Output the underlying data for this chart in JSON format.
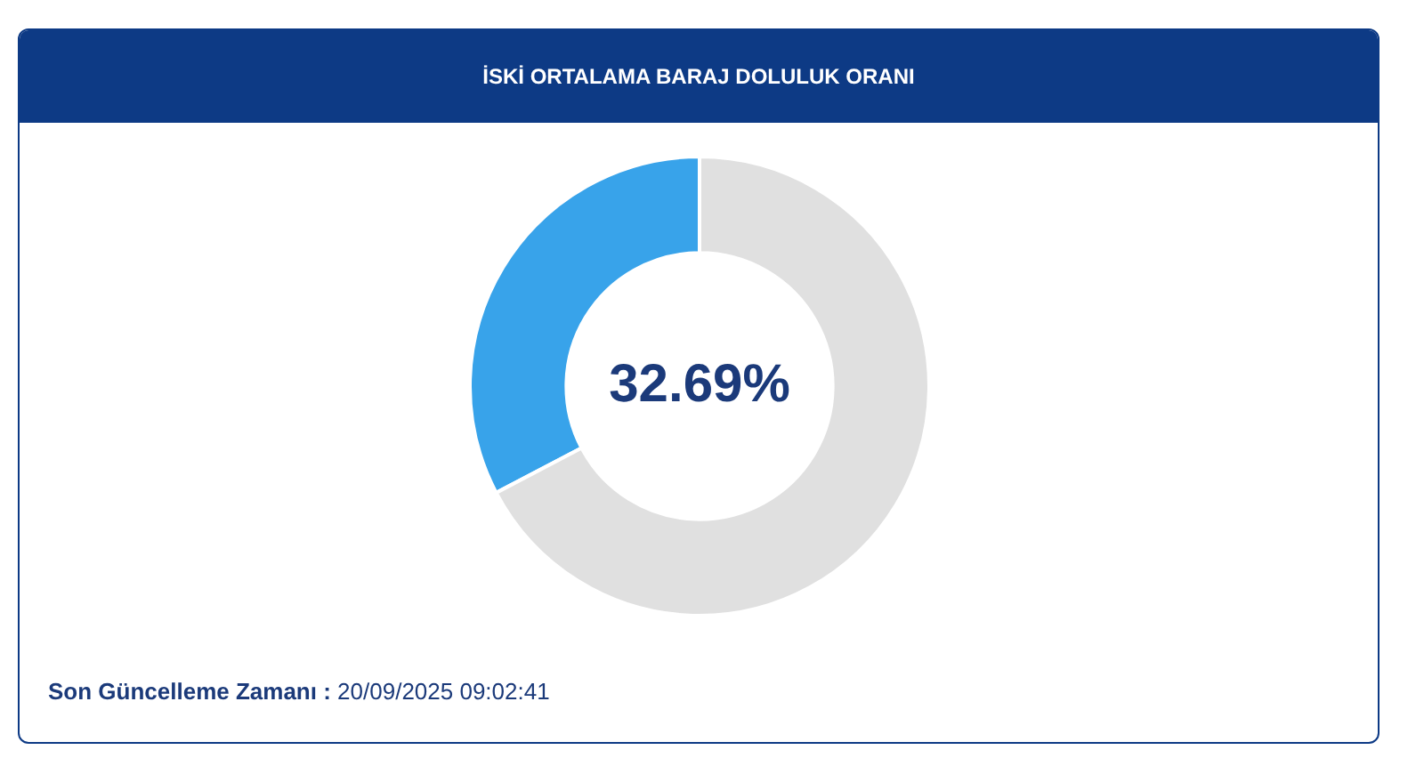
{
  "chart_data": {
    "type": "donut",
    "title": "İSKİ ORTALAMA BARAJ DOLULUK ORANI",
    "categories": [
      null,
      null
    ],
    "values": [
      32.69,
      67.31
    ],
    "colors": [
      "#38a3ea",
      "#e0e0e0"
    ],
    "value_labels": [
      "32.69%",
      null
    ],
    "legend": false,
    "annotations": [
      "Son Güncelleme Zamanı : 20/09/2025 09:02:41"
    ]
  }
}
